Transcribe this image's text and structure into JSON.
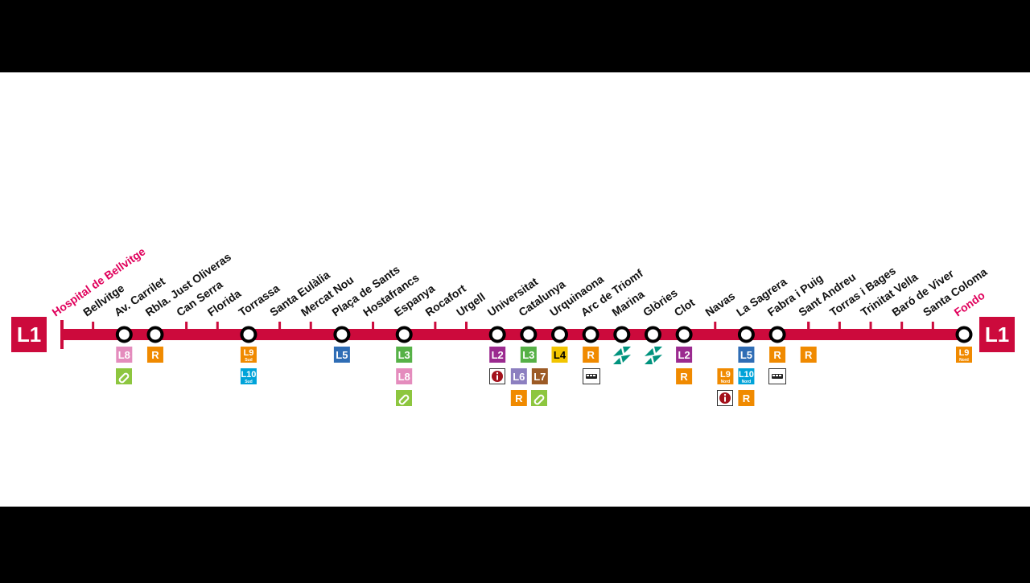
{
  "line": {
    "name": "L1",
    "color": "#cc0a3c",
    "terminus_color": "#e0005b",
    "stations": [
      {
        "name": "Hospital de Bellvitge",
        "terminus": true
      },
      {
        "name": "Bellvitge"
      },
      {
        "name": "Av. Carrilet",
        "interchange": true,
        "badges": [
          {
            "text": "L8",
            "color": "#e48cbd"
          }
        ]
      },
      {
        "name": "Rbla. Just Oliveras",
        "interchange": true,
        "badges": [
          {
            "text": "R",
            "color": "#f08a00"
          }
        ]
      },
      {
        "name": "Can Serra"
      },
      {
        "name": "Florida"
      },
      {
        "name": "Torrassa",
        "interchange": true,
        "badges": [
          {
            "text": "L9",
            "sub": "Sud",
            "color": "#f08a00"
          },
          {
            "text": "L10",
            "sub": "Sud",
            "color": "#00a3d9"
          }
        ]
      },
      {
        "name": "Santa Eulàlia"
      },
      {
        "name": "Mercat Nou"
      },
      {
        "name": "Plaça de Sants",
        "interchange": true,
        "badges": [
          {
            "text": "L5",
            "color": "#2f6db5"
          }
        ]
      },
      {
        "name": "Hostafrancs"
      },
      {
        "name": "Espanya",
        "interchange": true,
        "badges": [
          {
            "text": "L3",
            "color": "#56b147"
          },
          {
            "text": "L8",
            "color": "#e48cbd"
          }
        ]
      },
      {
        "name": "Rocafort"
      },
      {
        "name": "Urgell"
      },
      {
        "name": "Universitat",
        "interchange": true,
        "badges": [
          {
            "text": "L2",
            "color": "#9b2a8f"
          }
        ]
      },
      {
        "name": "Catalunya",
        "interchange": true,
        "badges": [
          {
            "text": "L3",
            "color": "#56b147"
          },
          {
            "text": "L6",
            "color": "#8c7fc0"
          },
          {
            "text": "L7",
            "color": "#9c5a25"
          },
          {
            "text": "R",
            "color": "#f08a00"
          }
        ]
      },
      {
        "name": "Urquinaona",
        "interchange": true,
        "badges": [
          {
            "text": "L4",
            "color": "#f2c500",
            "text_color": "#000000"
          }
        ]
      },
      {
        "name": "Arc de Triomf",
        "interchange": true,
        "badges": [
          {
            "text": "R",
            "color": "#f08a00"
          }
        ]
      },
      {
        "name": "Marina",
        "interchange": true
      },
      {
        "name": "Glòries",
        "interchange": true
      },
      {
        "name": "Clot",
        "interchange": true,
        "badges": [
          {
            "text": "L2",
            "color": "#9b2a8f"
          },
          {
            "text": "R",
            "color": "#f08a00"
          }
        ]
      },
      {
        "name": "Navas"
      },
      {
        "name": "La Sagrera",
        "interchange": true,
        "badges": [
          {
            "text": "L5",
            "color": "#2f6db5"
          },
          {
            "text": "L9",
            "sub": "Nord",
            "color": "#f08a00"
          },
          {
            "text": "L10",
            "sub": "Nord",
            "color": "#00a3d9"
          },
          {
            "text": "R",
            "color": "#f08a00"
          }
        ]
      },
      {
        "name": "Fabra i Puig",
        "interchange": true,
        "badges": [
          {
            "text": "R",
            "color": "#f08a00"
          }
        ]
      },
      {
        "name": "Sant Andreu",
        "badges": [
          {
            "text": "R",
            "color": "#f08a00"
          }
        ]
      },
      {
        "name": "Torras i Bages"
      },
      {
        "name": "Trinitat Vella"
      },
      {
        "name": "Baró de Viver"
      },
      {
        "name": "Santa Coloma"
      },
      {
        "name": "Fondo",
        "terminus": true,
        "interchange": true,
        "badges": [
          {
            "text": "L9",
            "sub": "Nord",
            "color": "#f08a00"
          }
        ]
      }
    ]
  }
}
